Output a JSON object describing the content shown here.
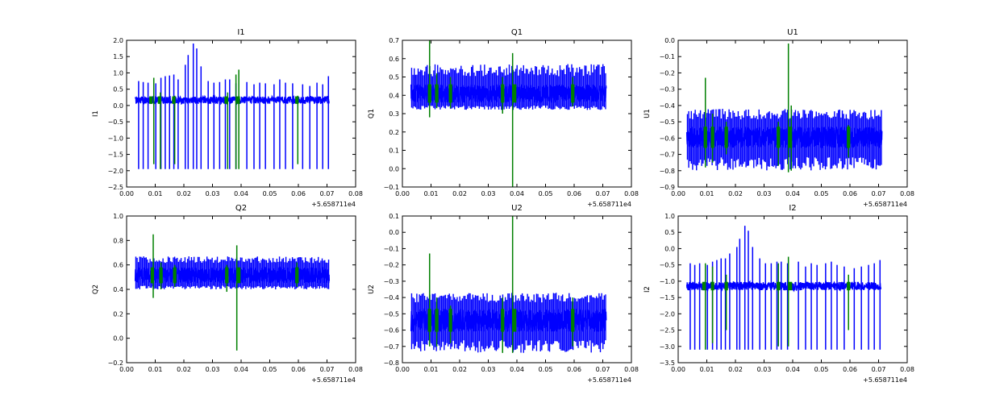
{
  "chart_data": [
    {
      "type": "line",
      "title": "I1",
      "ylabel": "I1",
      "x_offset_label": "+5.658711e4",
      "xlim": [
        0.0,
        0.08
      ],
      "ylim": [
        -2.5,
        2.0
      ],
      "xticks": [
        "0.00",
        "0.01",
        "0.02",
        "0.03",
        "0.04",
        "0.05",
        "0.06",
        "0.07",
        "0.08"
      ],
      "yticks": [
        "−2.5",
        "−2.0",
        "−1.5",
        "−1.0",
        "−0.5",
        "0.0",
        "0.5",
        "1.0",
        "1.5",
        "2.0"
      ],
      "grid": false,
      "series": [
        {
          "color": "#0000ff",
          "x_range": [
            0.003,
            0.0708
          ],
          "band": [
            0.05,
            0.28
          ],
          "spikes": [
            [
              0.0042,
              -1.95,
              0.75
            ],
            [
              0.0058,
              -1.95,
              0.72
            ],
            [
              0.0075,
              -1.95,
              0.7
            ],
            [
              0.0102,
              -1.95,
              0.68
            ],
            [
              0.012,
              -1.95,
              0.85
            ],
            [
              0.0135,
              -1.95,
              0.9
            ],
            [
              0.015,
              -1.95,
              0.92
            ],
            [
              0.0165,
              -1.95,
              0.95
            ],
            [
              0.018,
              -1.95,
              0.8
            ],
            [
              0.0205,
              -1.95,
              1.25
            ],
            [
              0.0215,
              -1.95,
              1.55
            ],
            [
              0.0233,
              -1.95,
              1.9
            ],
            [
              0.0245,
              -1.95,
              1.75
            ],
            [
              0.026,
              -1.95,
              1.2
            ],
            [
              0.0285,
              -1.95,
              0.75
            ],
            [
              0.0305,
              -1.95,
              0.7
            ],
            [
              0.0325,
              -1.95,
              0.72
            ],
            [
              0.0345,
              -1.95,
              0.8
            ],
            [
              0.036,
              -1.95,
              0.8
            ],
            [
              0.0382,
              -1.95,
              0.68
            ],
            [
              0.042,
              -1.95,
              0.72
            ],
            [
              0.0445,
              -1.95,
              0.65
            ],
            [
              0.0465,
              -1.95,
              0.7
            ],
            [
              0.0485,
              -1.95,
              0.68
            ],
            [
              0.0515,
              -1.95,
              0.65
            ],
            [
              0.0535,
              -1.95,
              0.8
            ],
            [
              0.0555,
              -1.95,
              0.7
            ],
            [
              0.058,
              -1.95,
              0.68
            ],
            [
              0.0615,
              -1.95,
              0.65
            ],
            [
              0.064,
              -1.95,
              0.6
            ],
            [
              0.0665,
              -1.95,
              0.7
            ],
            [
              0.0685,
              -1.95,
              0.65
            ],
            [
              0.0705,
              -1.95,
              0.9
            ]
          ]
        },
        {
          "color": "#008000",
          "x_range": [
            0.003,
            0.0708
          ],
          "band": [
            0.05,
            0.28
          ],
          "blocks": [
            0.0085,
            0.0115,
            0.0165,
            0.0348,
            0.039,
            0.0595
          ],
          "spikes": [
            [
              0.0095,
              -1.8,
              0.85
            ],
            [
              0.0118,
              -1.95,
              0.4
            ],
            [
              0.0168,
              -1.8,
              0.3
            ],
            [
              0.0353,
              -1.95,
              0.4
            ],
            [
              0.0382,
              -1.95,
              0.95
            ],
            [
              0.0392,
              -1.95,
              1.1
            ],
            [
              0.0598,
              -1.8,
              0.3
            ]
          ]
        }
      ]
    },
    {
      "type": "line",
      "title": "Q1",
      "ylabel": "Q1",
      "x_offset_label": "+5.658711e4",
      "xlim": [
        0.0,
        0.08
      ],
      "ylim": [
        -0.1,
        0.7
      ],
      "xticks": [
        "0.00",
        "0.01",
        "0.02",
        "0.03",
        "0.04",
        "0.05",
        "0.06",
        "0.07",
        "0.08"
      ],
      "yticks": [
        "−0.1",
        "0.0",
        "0.1",
        "0.2",
        "0.3",
        "0.4",
        "0.5",
        "0.6",
        "0.7"
      ],
      "grid": false,
      "series": [
        {
          "color": "#0000ff",
          "x_range": [
            0.003,
            0.0712
          ],
          "band": [
            0.36,
            0.46
          ],
          "spike_range": [
            0.32,
            0.57
          ]
        },
        {
          "color": "#008000",
          "x_range": [
            0.003,
            0.0712
          ],
          "band": [
            0.36,
            0.46
          ],
          "blocks": [
            0.0095,
            0.012,
            0.0168,
            0.035,
            0.0392,
            0.0595
          ],
          "spikes": [
            [
              0.0095,
              0.28,
              0.7
            ],
            [
              0.012,
              0.33,
              0.52
            ],
            [
              0.0168,
              0.33,
              0.5
            ],
            [
              0.035,
              0.3,
              0.5
            ],
            [
              0.0385,
              -0.1,
              0.63
            ],
            [
              0.0595,
              0.34,
              0.5
            ]
          ]
        }
      ]
    },
    {
      "type": "line",
      "title": "U1",
      "ylabel": "U1",
      "x_offset_label": "+5.658711e4",
      "xlim": [
        0.0,
        0.08
      ],
      "ylim": [
        -0.9,
        0.0
      ],
      "xticks": [
        "0.00",
        "0.01",
        "0.02",
        "0.03",
        "0.04",
        "0.05",
        "0.06",
        "0.07",
        "0.08"
      ],
      "yticks": [
        "−0.9",
        "−0.8",
        "−0.7",
        "−0.6",
        "−0.5",
        "−0.4",
        "−0.3",
        "−0.2",
        "−0.1",
        "0.0"
      ],
      "grid": false,
      "series": [
        {
          "color": "#0000ff",
          "x_range": [
            0.003,
            0.0712
          ],
          "band": [
            -0.66,
            -0.53
          ],
          "spike_range": [
            -0.8,
            -0.42
          ]
        },
        {
          "color": "#008000",
          "x_range": [
            0.003,
            0.0712
          ],
          "band": [
            -0.66,
            -0.53
          ],
          "blocks": [
            0.0095,
            0.012,
            0.0168,
            0.035,
            0.0392,
            0.0595
          ],
          "spikes": [
            [
              0.0095,
              -0.78,
              -0.23
            ],
            [
              0.012,
              -0.75,
              -0.45
            ],
            [
              0.0168,
              -0.7,
              -0.5
            ],
            [
              0.035,
              -0.77,
              -0.5
            ],
            [
              0.0385,
              -0.81,
              -0.02
            ],
            [
              0.0395,
              -0.8,
              -0.4
            ],
            [
              0.0595,
              -0.72,
              -0.52
            ]
          ]
        }
      ]
    },
    {
      "type": "line",
      "title": "Q2",
      "ylabel": "Q2",
      "x_offset_label": "+5.658711e4",
      "xlim": [
        0.0,
        0.08
      ],
      "ylim": [
        -0.2,
        1.0
      ],
      "xticks": [
        "0.00",
        "0.01",
        "0.02",
        "0.03",
        "0.04",
        "0.05",
        "0.06",
        "0.07",
        "0.08"
      ],
      "yticks": [
        "−0.2",
        "0.0",
        "0.2",
        "0.4",
        "0.6",
        "0.8",
        "1.0"
      ],
      "grid": false,
      "series": [
        {
          "color": "#0000ff",
          "x_range": [
            0.003,
            0.0708
          ],
          "band": [
            0.45,
            0.58
          ],
          "spike_range": [
            0.4,
            0.67
          ]
        },
        {
          "color": "#008000",
          "x_range": [
            0.003,
            0.0708
          ],
          "band": [
            0.45,
            0.58
          ],
          "blocks": [
            0.009,
            0.012,
            0.0168,
            0.035,
            0.0392,
            0.0595
          ],
          "spikes": [
            [
              0.0093,
              0.33,
              0.85
            ],
            [
              0.012,
              0.4,
              0.62
            ],
            [
              0.0168,
              0.42,
              0.6
            ],
            [
              0.035,
              0.38,
              0.6
            ],
            [
              0.0385,
              -0.1,
              0.76
            ],
            [
              0.0595,
              0.42,
              0.62
            ]
          ]
        }
      ]
    },
    {
      "type": "line",
      "title": "U2",
      "ylabel": "U2",
      "x_offset_label": "+5.658711e4",
      "xlim": [
        0.0,
        0.08
      ],
      "ylim": [
        -0.8,
        0.1
      ],
      "xticks": [
        "0.00",
        "0.01",
        "0.02",
        "0.03",
        "0.04",
        "0.05",
        "0.06",
        "0.07",
        "0.08"
      ],
      "yticks": [
        "−0.8",
        "−0.7",
        "−0.6",
        "−0.5",
        "−0.4",
        "−0.3",
        "−0.2",
        "−0.1",
        "0.0",
        "0.1"
      ],
      "grid": false,
      "series": [
        {
          "color": "#0000ff",
          "x_range": [
            0.003,
            0.0712
          ],
          "band": [
            -0.61,
            -0.47
          ],
          "spike_range": [
            -0.74,
            -0.37
          ]
        },
        {
          "color": "#008000",
          "x_range": [
            0.003,
            0.0712
          ],
          "band": [
            -0.61,
            -0.47
          ],
          "blocks": [
            0.0095,
            0.012,
            0.0168,
            0.035,
            0.0392,
            0.0595
          ],
          "spikes": [
            [
              0.0095,
              -0.7,
              -0.13
            ],
            [
              0.012,
              -0.7,
              -0.4
            ],
            [
              0.0168,
              -0.68,
              -0.45
            ],
            [
              0.035,
              -0.74,
              -0.4
            ],
            [
              0.0385,
              -0.74,
              0.1
            ],
            [
              0.0595,
              -0.7,
              -0.4
            ]
          ]
        }
      ]
    },
    {
      "type": "line",
      "title": "I2",
      "ylabel": "I2",
      "x_offset_label": "+5.658711e4",
      "xlim": [
        0.0,
        0.08
      ],
      "ylim": [
        -3.5,
        1.0
      ],
      "xticks": [
        "0.00",
        "0.01",
        "0.02",
        "0.03",
        "0.04",
        "0.05",
        "0.06",
        "0.07",
        "0.08"
      ],
      "yticks": [
        "−3.5",
        "−3.0",
        "−2.5",
        "−2.0",
        "−1.5",
        "−1.0",
        "−0.5",
        "0.0",
        "0.5",
        "1.0"
      ],
      "grid": false,
      "series": [
        {
          "color": "#0000ff",
          "x_range": [
            0.003,
            0.0708
          ],
          "band": [
            -1.28,
            -1.02
          ],
          "spikes": [
            [
              0.0042,
              -3.1,
              -0.45
            ],
            [
              0.0058,
              -3.1,
              -0.5
            ],
            [
              0.0075,
              -3.1,
              -0.45
            ],
            [
              0.0102,
              -3.1,
              -0.5
            ],
            [
              0.012,
              -3.1,
              -0.4
            ],
            [
              0.0135,
              -3.1,
              -0.35
            ],
            [
              0.015,
              -3.1,
              -0.3
            ],
            [
              0.0165,
              -3.1,
              -0.3
            ],
            [
              0.018,
              -3.1,
              -0.15
            ],
            [
              0.0205,
              -3.1,
              0.05
            ],
            [
              0.0215,
              -3.1,
              0.3
            ],
            [
              0.0233,
              -3.1,
              0.7
            ],
            [
              0.0245,
              -3.1,
              0.55
            ],
            [
              0.026,
              -3.1,
              0.05
            ],
            [
              0.0285,
              -3.1,
              -0.3
            ],
            [
              0.0305,
              -3.1,
              -0.45
            ],
            [
              0.0325,
              -3.1,
              -0.45
            ],
            [
              0.0345,
              -3.1,
              -0.4
            ],
            [
              0.036,
              -3.1,
              -0.4
            ],
            [
              0.0382,
              -3.1,
              -0.45
            ],
            [
              0.042,
              -3.1,
              -0.4
            ],
            [
              0.0445,
              -3.1,
              -0.55
            ],
            [
              0.0465,
              -3.1,
              -0.45
            ],
            [
              0.0485,
              -3.1,
              -0.5
            ],
            [
              0.0515,
              -3.1,
              -0.45
            ],
            [
              0.0535,
              -3.1,
              -0.4
            ],
            [
              0.0555,
              -3.1,
              -0.5
            ],
            [
              0.058,
              -3.1,
              -0.55
            ],
            [
              0.0615,
              -3.1,
              -0.6
            ],
            [
              0.064,
              -3.1,
              -0.55
            ],
            [
              0.0665,
              -3.1,
              -0.5
            ],
            [
              0.0685,
              -3.1,
              -0.45
            ],
            [
              0.0705,
              -3.1,
              -0.35
            ]
          ]
        },
        {
          "color": "#008000",
          "x_range": [
            0.003,
            0.0708
          ],
          "band": [
            -1.28,
            -1.02
          ],
          "blocks": [
            0.009,
            0.012,
            0.0168,
            0.035,
            0.0392,
            0.0595
          ],
          "spikes": [
            [
              0.0095,
              -3.1,
              -0.45
            ],
            [
              0.012,
              -2.9,
              -0.55
            ],
            [
              0.0168,
              -2.5,
              -0.8
            ],
            [
              0.035,
              -3.0,
              -0.45
            ],
            [
              0.0385,
              -3.0,
              -0.25
            ],
            [
              0.0595,
              -2.5,
              -0.8
            ]
          ]
        }
      ]
    }
  ]
}
